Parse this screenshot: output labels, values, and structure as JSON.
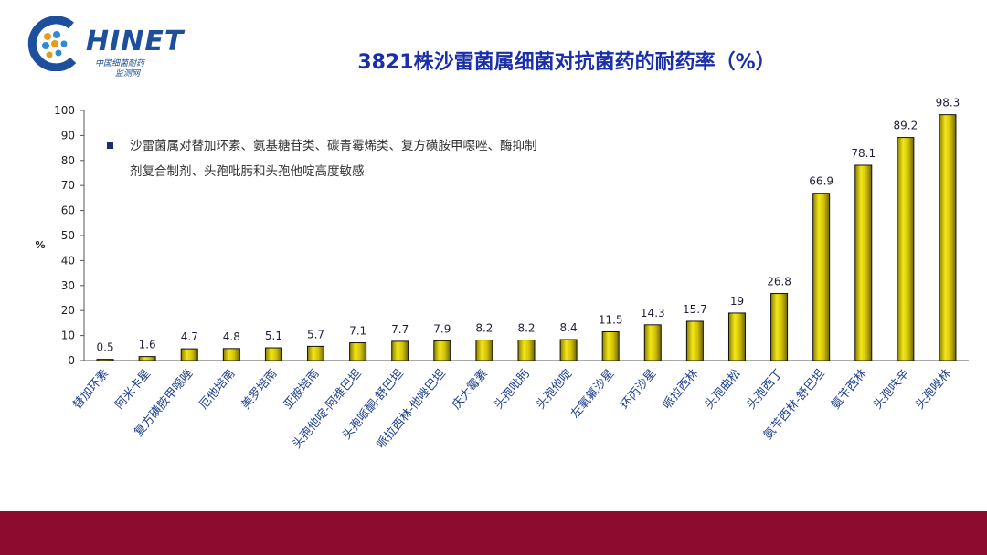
{
  "logo": {
    "brand": "HINET",
    "sub_line1": "中国细菌耐药",
    "sub_line2": "监测网"
  },
  "chart_data": {
    "type": "bar",
    "title": "3821株沙雷菌属细菌对抗菌药的耐药率（%）",
    "ylabel": "%",
    "ylim": [
      0,
      100
    ],
    "yticks": [
      0,
      10,
      20,
      30,
      40,
      50,
      60,
      70,
      80,
      90,
      100
    ],
    "categories": [
      "替加环素",
      "阿米卡星",
      "复方磺胺甲噁唑",
      "厄他培南",
      "美罗培南",
      "亚胺培南",
      "头孢他啶-阿维巴坦",
      "头孢哌酮-舒巴坦",
      "哌拉西林-他唑巴坦",
      "庆大霉素",
      "头孢吡肟",
      "头孢他啶",
      "左氧氟沙星",
      "环丙沙星",
      "哌拉西林",
      "头孢曲松",
      "头孢西丁",
      "氨苄西林-舒巴坦",
      "氨苄西林",
      "头孢呋辛",
      "头孢唑林"
    ],
    "values": [
      0.5,
      1.6,
      4.7,
      4.8,
      5.1,
      5.7,
      7.1,
      7.7,
      7.9,
      8.2,
      8.2,
      8.4,
      11.5,
      14.3,
      15.7,
      19,
      26.8,
      66.9,
      78.1,
      89.2,
      98.3
    ],
    "data_labels": [
      "0.5",
      "1.6",
      "4.7",
      "4.8",
      "5.1",
      "5.7",
      "7.1",
      "7.7",
      "7.9",
      "8.2",
      "8.2",
      "8.4",
      "11.5",
      "14.3",
      "15.7",
      "19",
      "26.8",
      "66.9",
      "78.1",
      "89.2",
      "98.3"
    ],
    "annotation": {
      "bullet": "■",
      "line1": "沙雷菌属对替加环素、氨基糖苷类、碳青霉烯类、复方磺胺甲噁唑、酶抑制",
      "line2": "剂复合制剂、头孢吡肟和头孢他啶高度敏感"
    },
    "grid": false,
    "bar_color": "#d4c400"
  },
  "colors": {
    "accent": "#1a2fa8",
    "axis": "#555555",
    "footer": "#8c0b2e"
  }
}
